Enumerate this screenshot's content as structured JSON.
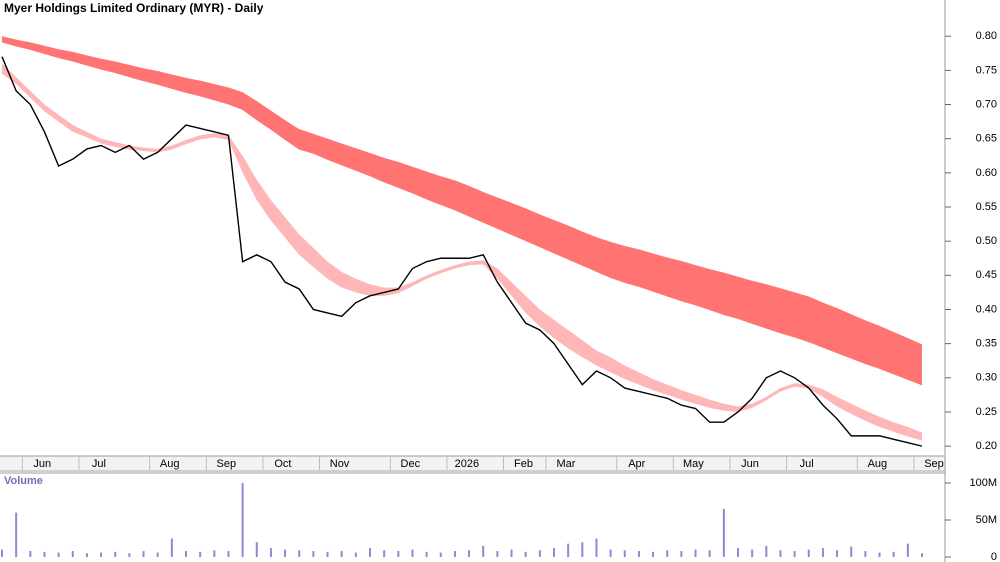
{
  "chart_data": [
    {
      "type": "line",
      "title": "Myer Holdings Limited Ordinary (MYR) - Daily",
      "color": "#000000",
      "categories": [
        null,
        null,
        "Jun",
        null,
        null,
        null,
        "Jul",
        null,
        null,
        null,
        null,
        "Aug",
        null,
        null,
        null,
        "Sep",
        null,
        null,
        null,
        "Oct",
        null,
        null,
        null,
        "Nov",
        null,
        null,
        null,
        null,
        "Dec",
        null,
        null,
        null,
        "2026",
        null,
        null,
        null,
        "Feb",
        null,
        null,
        "Mar",
        null,
        null,
        null,
        null,
        "Apr",
        null,
        null,
        null,
        "May",
        null,
        null,
        null,
        "Jun",
        null,
        null,
        null,
        "Jul",
        null,
        null,
        null,
        null,
        "Aug",
        null,
        null,
        null,
        "Sep"
      ],
      "values": [
        0.77,
        0.72,
        0.7,
        0.66,
        0.61,
        0.62,
        0.635,
        0.64,
        0.63,
        0.64,
        0.62,
        0.63,
        0.65,
        0.67,
        0.665,
        0.66,
        0.655,
        0.47,
        0.48,
        0.47,
        0.44,
        0.43,
        0.4,
        0.395,
        0.39,
        0.41,
        0.42,
        0.425,
        0.43,
        0.46,
        0.47,
        0.475,
        0.475,
        0.475,
        0.48,
        0.44,
        0.41,
        0.38,
        0.37,
        0.35,
        0.32,
        0.29,
        0.31,
        0.3,
        0.285,
        0.28,
        0.275,
        0.27,
        0.26,
        0.255,
        0.235,
        0.235,
        0.25,
        0.27,
        0.3,
        0.31,
        0.3,
        0.285,
        0.26,
        0.24,
        0.215,
        0.215,
        0.215,
        0.21,
        0.205,
        0.2
      ],
      "bands": [
        {
          "color": "#ff7373",
          "upper": [
            0.8,
            0.795,
            0.791,
            0.786,
            0.781,
            0.777,
            0.772,
            0.767,
            0.763,
            0.758,
            0.753,
            0.749,
            0.744,
            0.739,
            0.735,
            0.73,
            0.725,
            0.718,
            0.705,
            0.691,
            0.677,
            0.664,
            0.657,
            0.65,
            0.643,
            0.636,
            0.629,
            0.622,
            0.616,
            0.609,
            0.602,
            0.595,
            0.589,
            0.581,
            0.572,
            0.564,
            0.556,
            0.548,
            0.539,
            0.531,
            0.523,
            0.514,
            0.506,
            0.499,
            0.493,
            0.488,
            0.482,
            0.476,
            0.471,
            0.465,
            0.459,
            0.454,
            0.448,
            0.442,
            0.437,
            0.431,
            0.425,
            0.419,
            0.41,
            0.402,
            0.393,
            0.384,
            0.376,
            0.367,
            0.358,
            0.349
          ],
          "lower": [
            0.791,
            0.785,
            0.78,
            0.774,
            0.768,
            0.763,
            0.757,
            0.751,
            0.746,
            0.74,
            0.734,
            0.729,
            0.723,
            0.717,
            0.712,
            0.706,
            0.7,
            0.692,
            0.677,
            0.663,
            0.648,
            0.634,
            0.628,
            0.619,
            0.611,
            0.603,
            0.595,
            0.586,
            0.578,
            0.57,
            0.561,
            0.553,
            0.545,
            0.536,
            0.527,
            0.518,
            0.509,
            0.5,
            0.491,
            0.482,
            0.473,
            0.464,
            0.455,
            0.446,
            0.439,
            0.433,
            0.426,
            0.419,
            0.412,
            0.406,
            0.399,
            0.392,
            0.386,
            0.379,
            0.372,
            0.365,
            0.359,
            0.352,
            0.344,
            0.336,
            0.328,
            0.32,
            0.313,
            0.305,
            0.297,
            0.289
          ]
        },
        {
          "color": "#ffb6b6",
          "upper": [
            0.76,
            0.74,
            0.72,
            0.7,
            0.685,
            0.67,
            0.66,
            0.65,
            0.645,
            0.64,
            0.637,
            0.635,
            0.64,
            0.648,
            0.655,
            0.658,
            0.655,
            0.625,
            0.59,
            0.56,
            0.535,
            0.51,
            0.49,
            0.47,
            0.455,
            0.445,
            0.437,
            0.432,
            0.432,
            0.44,
            0.45,
            0.458,
            0.465,
            0.47,
            0.472,
            0.46,
            0.44,
            0.42,
            0.4,
            0.385,
            0.37,
            0.355,
            0.34,
            0.33,
            0.318,
            0.308,
            0.298,
            0.29,
            0.282,
            0.275,
            0.268,
            0.262,
            0.258,
            0.262,
            0.272,
            0.285,
            0.292,
            0.29,
            0.283,
            0.272,
            0.262,
            0.252,
            0.243,
            0.235,
            0.228,
            0.22
          ],
          "lower": [
            0.745,
            0.73,
            0.71,
            0.69,
            0.675,
            0.66,
            0.652,
            0.643,
            0.638,
            0.634,
            0.632,
            0.63,
            0.634,
            0.642,
            0.649,
            0.652,
            0.648,
            0.6,
            0.56,
            0.53,
            0.505,
            0.48,
            0.462,
            0.445,
            0.432,
            0.425,
            0.42,
            0.42,
            0.424,
            0.434,
            0.445,
            0.453,
            0.46,
            0.465,
            0.466,
            0.445,
            0.42,
            0.395,
            0.375,
            0.358,
            0.343,
            0.33,
            0.318,
            0.308,
            0.298,
            0.29,
            0.282,
            0.275,
            0.268,
            0.262,
            0.256,
            0.252,
            0.25,
            0.256,
            0.267,
            0.28,
            0.287,
            0.284,
            0.272,
            0.258,
            0.247,
            0.237,
            0.228,
            0.221,
            0.214,
            0.208
          ]
        }
      ],
      "ylim": [
        0.187,
        0.853
      ],
      "yticks": [
        {
          "value": 0.2,
          "label": "0.20"
        },
        0.25,
        {
          "value": 0.3,
          "label": "0.30"
        },
        0.35,
        {
          "value": 0.4,
          "label": "0.40"
        },
        0.45,
        {
          "value": 0.5,
          "label": "0.50"
        },
        0.55,
        {
          "value": 0.6,
          "label": "0.60"
        },
        0.65,
        {
          "value": 0.7,
          "label": "0.70"
        },
        0.75,
        {
          "value": 0.8,
          "label": "0.80"
        }
      ]
    },
    {
      "type": "bar",
      "title": "Volume",
      "color": "#8a8ad6",
      "values": [
        10000000,
        60000000,
        8000000,
        7000000,
        6000000,
        8000000,
        5000000,
        6000000,
        7000000,
        5000000,
        8000000,
        6000000,
        25000000,
        8000000,
        7000000,
        9000000,
        8000000,
        100000000,
        20000000,
        12000000,
        10000000,
        9000000,
        8000000,
        7000000,
        8000000,
        6000000,
        12000000,
        9000000,
        8000000,
        10000000,
        7000000,
        6000000,
        8000000,
        9000000,
        15000000,
        8000000,
        10000000,
        7000000,
        9000000,
        12000000,
        18000000,
        20000000,
        25000000,
        10000000,
        9000000,
        8000000,
        7000000,
        9000000,
        8000000,
        10000000,
        9000000,
        65000000,
        12000000,
        10000000,
        15000000,
        9000000,
        8000000,
        10000000,
        12000000,
        9000000,
        14000000,
        8000000,
        6000000,
        7000000,
        18000000,
        5000000
      ],
      "ylim": [
        0,
        117600000
      ],
      "yticks": [
        0,
        {
          "value": 50000000,
          "label": "50M"
        },
        {
          "value": 100000000,
          "label": "100M"
        }
      ]
    }
  ]
}
